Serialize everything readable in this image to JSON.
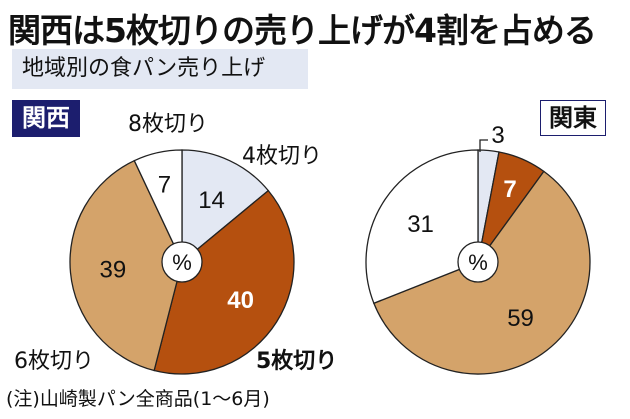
{
  "title": "関西は5枚切りの売り上げが4割を占める",
  "subtitle": "地域別の食パン売り上げ",
  "note": "(注)山崎製パン全商品(1〜6月)",
  "colors": {
    "4枚切り": "#e3e8f3",
    "5枚切り": "#b5500f",
    "6枚切り": "#d4a36a",
    "8枚切り": "#ffffff"
  },
  "chart_data": [
    {
      "type": "pie",
      "region": "関西",
      "unit": "%",
      "categories": [
        "4枚切り",
        "5枚切り",
        "6枚切り",
        "8枚切り"
      ],
      "values": [
        14,
        40,
        39,
        7
      ],
      "start": "top",
      "direction": "clockwise"
    },
    {
      "type": "pie",
      "region": "関東",
      "unit": "%",
      "categories": [
        "4枚切り",
        "5枚切り",
        "6枚切り",
        "8枚切り"
      ],
      "values": [
        3,
        7,
        59,
        31
      ],
      "start": "top",
      "direction": "clockwise"
    }
  ]
}
